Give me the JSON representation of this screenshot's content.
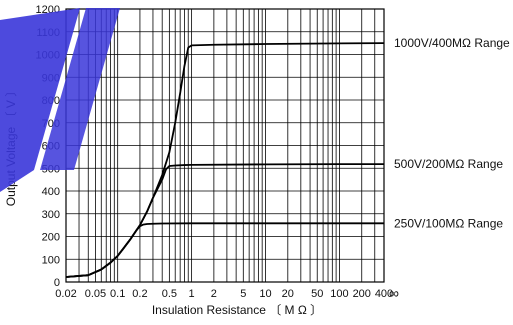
{
  "chart_data": {
    "type": "line",
    "title": "",
    "xlabel": "Insulation Resistance 〔 M Ω 〕",
    "ylabel": "Output Voltage 〔 V 〕",
    "x_scale": "log",
    "xlim": [
      0.02,
      400
    ],
    "ylim": [
      0,
      1200
    ],
    "x_tick_values": [
      0.02,
      0.05,
      0.1,
      0.2,
      0.5,
      1,
      2,
      5,
      10,
      20,
      50,
      100,
      200,
      400
    ],
    "x_tick_labels": [
      "0.02",
      "0.05",
      "0.1",
      "0.2",
      "0.5",
      "1",
      "2",
      "5",
      "10",
      "20",
      "50",
      "100",
      "200",
      "400"
    ],
    "x_end_label": "∞",
    "y_tick_values": [
      0,
      100,
      200,
      300,
      400,
      500,
      600,
      700,
      800,
      900,
      1000,
      1100,
      1200
    ],
    "y_tick_labels": [
      "0",
      "100",
      "200",
      "300",
      "400",
      "500",
      "600",
      "700",
      "800",
      "900",
      "1000",
      "1100",
      "1200"
    ],
    "grid": true,
    "series": [
      {
        "name": "250V/100MΩ Range",
        "x": [
          0.02,
          0.04,
          0.06,
          0.08,
          0.1,
          0.12,
          0.15,
          0.18,
          0.2,
          0.22,
          0.25,
          0.3,
          0.4,
          1,
          10,
          100,
          400
        ],
        "y": [
          22,
          30,
          55,
          85,
          115,
          148,
          190,
          228,
          245,
          252,
          255,
          256,
          257,
          258,
          258,
          258,
          258
        ]
      },
      {
        "name": "500V/200MΩ Range",
        "x": [
          0.02,
          0.04,
          0.06,
          0.08,
          0.1,
          0.12,
          0.15,
          0.18,
          0.2,
          0.25,
          0.3,
          0.4,
          0.45,
          0.5,
          0.6,
          0.8,
          1,
          10,
          100,
          400
        ],
        "y": [
          22,
          30,
          55,
          85,
          115,
          148,
          190,
          228,
          250,
          310,
          370,
          450,
          495,
          510,
          512,
          514,
          515,
          517,
          518,
          518
        ]
      },
      {
        "name": "1000V/400MΩ Range",
        "x": [
          0.02,
          0.04,
          0.06,
          0.08,
          0.1,
          0.12,
          0.15,
          0.18,
          0.2,
          0.25,
          0.3,
          0.4,
          0.5,
          0.6,
          0.7,
          0.8,
          0.9,
          1,
          2,
          10,
          100,
          400
        ],
        "y": [
          22,
          30,
          55,
          85,
          115,
          148,
          190,
          228,
          250,
          310,
          370,
          470,
          570,
          700,
          830,
          950,
          1030,
          1040,
          1043,
          1046,
          1049,
          1050
        ]
      }
    ]
  }
}
